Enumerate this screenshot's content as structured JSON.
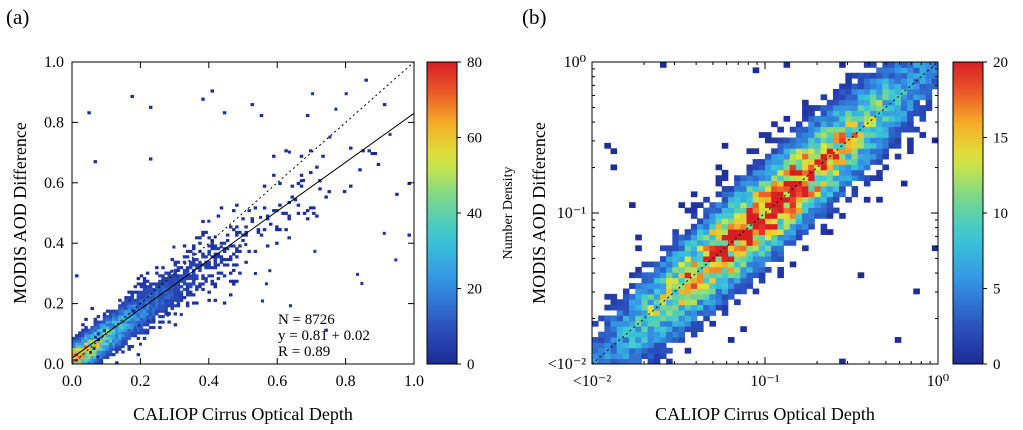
{
  "chart_data": [
    {
      "type": "heatmap",
      "panel_label": "(a)",
      "xlabel": "CALIOP Cirrus Optical Depth",
      "ylabel": "MODIS AOD Difference",
      "xlim": [
        0.0,
        1.0
      ],
      "ylim": [
        0.0,
        1.0
      ],
      "x_scale": "linear",
      "y_scale": "linear",
      "x_tick_labels": [
        "0.0",
        "0.2",
        "0.4",
        "0.6",
        "0.8",
        "1.0"
      ],
      "y_tick_labels": [
        "0.0",
        "0.2",
        "0.4",
        "0.6",
        "0.8",
        "1.0"
      ],
      "x_tick_values": [
        0.0,
        0.2,
        0.4,
        0.6,
        0.8,
        1.0
      ],
      "y_tick_values": [
        0.0,
        0.2,
        0.4,
        0.6,
        0.8,
        1.0
      ],
      "annotations": [
        "N = 8726",
        "y = 0.81 + 0.02",
        "R = 0.89"
      ],
      "reference_lines": [
        {
          "style": "dotted",
          "slope": 1.0,
          "intercept": 0.0
        },
        {
          "style": "solid",
          "slope": 0.81,
          "intercept": 0.02
        }
      ],
      "colorbar": {
        "label": "Number Density",
        "min": 0,
        "max": 80,
        "tick_labels": [
          "0",
          "20",
          "40",
          "60",
          "80"
        ],
        "tick_values": [
          0,
          20,
          40,
          60,
          80
        ]
      },
      "density_model": {
        "ridge_slope": 0.81,
        "ridge_intercept": 0.02,
        "x_decay": 0.14,
        "scatter_width": 0.07,
        "peak_value": 80
      },
      "grid": false
    },
    {
      "type": "heatmap",
      "panel_label": "(b)",
      "xlabel": "CALIOP Cirrus Optical Depth",
      "ylabel": "MODIS AOD Difference",
      "xlim": [
        0.01,
        1.0
      ],
      "ylim": [
        0.01,
        1.0
      ],
      "x_scale": "log",
      "y_scale": "log",
      "x_tick_labels": [
        "<10⁻²",
        "10⁻¹",
        "10⁰"
      ],
      "y_tick_labels": [
        "<10⁻²",
        "10⁻¹",
        "10⁰"
      ],
      "x_tick_values": [
        0.01,
        0.1,
        1.0
      ],
      "y_tick_values": [
        0.01,
        0.1,
        1.0
      ],
      "reference_lines": [
        {
          "style": "dotted",
          "slope": 1.0,
          "intercept": 0.0
        }
      ],
      "colorbar": {
        "label": "Number Density",
        "min": 0,
        "max": 20,
        "tick_labels": [
          "0",
          "5",
          "10",
          "15",
          "20"
        ],
        "tick_values": [
          0,
          5,
          10,
          15,
          20
        ]
      },
      "density_model": {
        "peak_x": 0.1,
        "peak_y": 0.1,
        "ridge_slope_log": 1.0,
        "scatter_width_log": 0.18,
        "peak_value": 20
      },
      "grid": false
    }
  ]
}
